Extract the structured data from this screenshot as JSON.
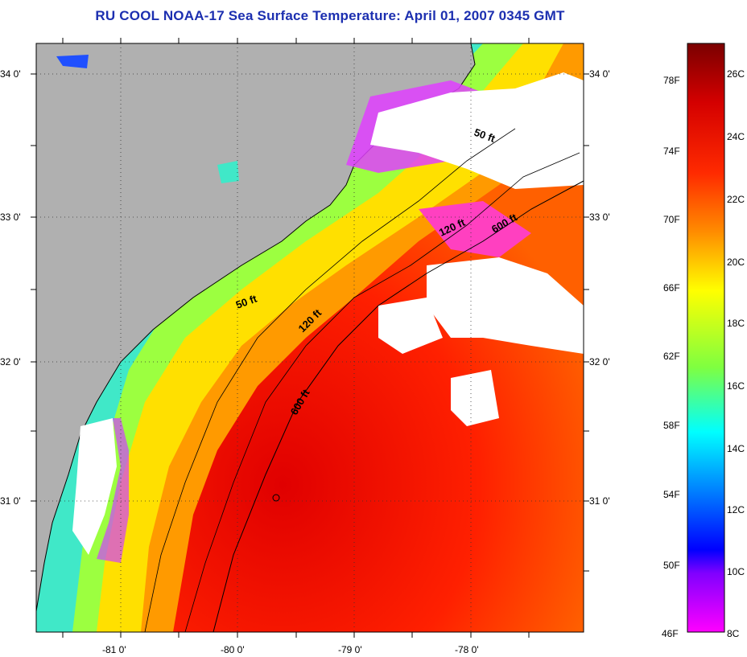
{
  "title": "RU COOL  NOAA-17  Sea Surface Temperature:  April 01, 2007 0345 GMT",
  "map": {
    "lat_labels": [
      "34 0'",
      "33 0'",
      "32 0'",
      "31 0'"
    ],
    "lon_labels": [
      "-81 0'",
      "-80 0'",
      "-79 0'",
      "-78 0'"
    ],
    "contour_labels": [
      "50 ft",
      "50 ft",
      "120 ft",
      "120 ft",
      "600 ft",
      "600 ft"
    ]
  },
  "colorbar": {
    "fahrenheit_labels": [
      "78F",
      "74F",
      "70F",
      "66F",
      "62F",
      "58F",
      "54F",
      "50F",
      "46F"
    ],
    "celsius_labels": [
      "26C",
      "24C",
      "22C",
      "20C",
      "18C",
      "16C",
      "14C",
      "12C",
      "10C",
      "8C"
    ],
    "colors": [
      "#7a0000",
      "#d40000",
      "#ff2a00",
      "#ff8c00",
      "#ffff00",
      "#7fff40",
      "#00ffff",
      "#0080ff",
      "#0000ff",
      "#8000ff",
      "#ff00ff"
    ]
  },
  "colors": {
    "land": "#b0b0b0",
    "cloud": "#ffffff",
    "title": "#1c2fb0"
  }
}
